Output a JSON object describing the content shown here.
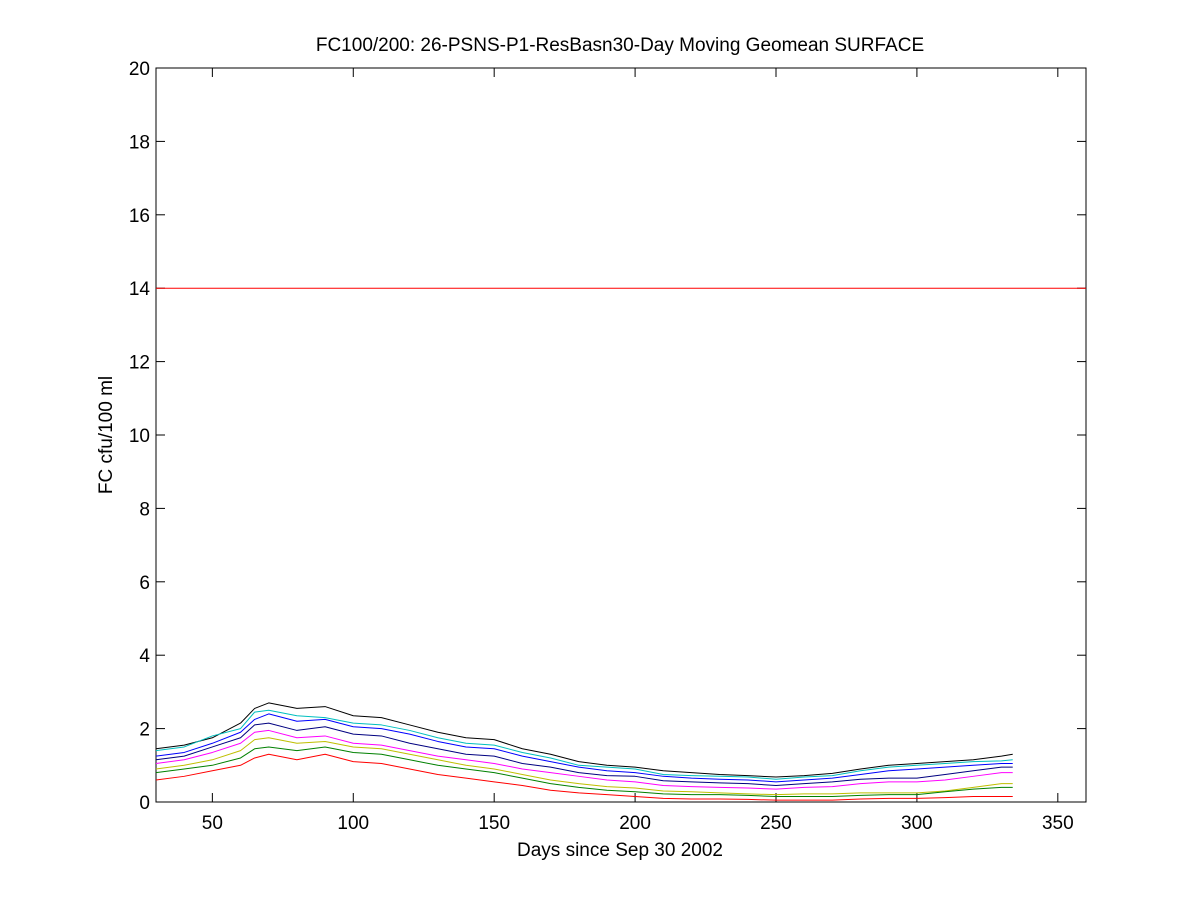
{
  "chart_data": {
    "type": "line",
    "title": "FC100/200: 26-PSNS-P1-ResBasn30-Day Moving Geomean SURFACE",
    "xlabel": "Days since Sep 30 2002",
    "ylabel": "FC cfu/100 ml",
    "xlim": [
      30,
      360
    ],
    "ylim": [
      0,
      20
    ],
    "xticks": [
      50,
      100,
      150,
      200,
      250,
      300,
      350
    ],
    "yticks": [
      0,
      2,
      4,
      6,
      8,
      10,
      12,
      14,
      16,
      18,
      20
    ],
    "grid": false,
    "legend": "none",
    "x": [
      30,
      40,
      50,
      60,
      65,
      70,
      80,
      90,
      100,
      110,
      120,
      130,
      140,
      150,
      160,
      170,
      180,
      190,
      200,
      210,
      220,
      230,
      240,
      250,
      260,
      270,
      280,
      290,
      300,
      310,
      320,
      330,
      334
    ],
    "reference_line": {
      "y": 14,
      "color": "#ff0000"
    },
    "series": [
      {
        "color": "#000000",
        "values": [
          1.45,
          1.55,
          1.75,
          2.15,
          2.55,
          2.7,
          2.55,
          2.6,
          2.35,
          2.3,
          2.1,
          1.9,
          1.75,
          1.7,
          1.45,
          1.3,
          1.1,
          1.0,
          0.95,
          0.85,
          0.8,
          0.75,
          0.72,
          0.68,
          0.72,
          0.78,
          0.9,
          1.0,
          1.05,
          1.1,
          1.15,
          1.25,
          1.3
        ]
      },
      {
        "color": "#00bfbf",
        "values": [
          1.4,
          1.5,
          1.8,
          2.0,
          2.45,
          2.5,
          2.35,
          2.3,
          2.15,
          2.1,
          1.95,
          1.75,
          1.6,
          1.55,
          1.35,
          1.2,
          1.0,
          0.95,
          0.9,
          0.75,
          0.72,
          0.7,
          0.68,
          0.62,
          0.68,
          0.72,
          0.85,
          0.95,
          1.0,
          1.05,
          1.1,
          1.12,
          1.15
        ]
      },
      {
        "color": "#0000ff",
        "values": [
          1.25,
          1.35,
          1.6,
          1.9,
          2.25,
          2.4,
          2.2,
          2.25,
          2.05,
          2.0,
          1.85,
          1.65,
          1.5,
          1.45,
          1.25,
          1.1,
          0.95,
          0.85,
          0.8,
          0.7,
          0.65,
          0.62,
          0.6,
          0.55,
          0.6,
          0.65,
          0.75,
          0.85,
          0.9,
          0.95,
          1.0,
          1.05,
          1.05
        ]
      },
      {
        "color": "#000080",
        "values": [
          1.15,
          1.25,
          1.5,
          1.75,
          2.1,
          2.15,
          1.95,
          2.05,
          1.85,
          1.8,
          1.6,
          1.45,
          1.3,
          1.25,
          1.05,
          0.95,
          0.8,
          0.72,
          0.7,
          0.58,
          0.55,
          0.52,
          0.5,
          0.45,
          0.5,
          0.55,
          0.62,
          0.65,
          0.65,
          0.75,
          0.85,
          0.95,
          0.95
        ]
      },
      {
        "color": "#ff00ff",
        "values": [
          1.05,
          1.15,
          1.35,
          1.6,
          1.9,
          1.95,
          1.75,
          1.8,
          1.6,
          1.55,
          1.4,
          1.25,
          1.15,
          1.05,
          0.9,
          0.8,
          0.7,
          0.6,
          0.55,
          0.45,
          0.42,
          0.4,
          0.38,
          0.35,
          0.4,
          0.42,
          0.5,
          0.55,
          0.55,
          0.6,
          0.7,
          0.8,
          0.8
        ]
      },
      {
        "color": "#bfbf00",
        "values": [
          0.9,
          1.0,
          1.15,
          1.4,
          1.7,
          1.75,
          1.6,
          1.65,
          1.5,
          1.45,
          1.3,
          1.15,
          1.0,
          0.9,
          0.75,
          0.6,
          0.5,
          0.42,
          0.38,
          0.3,
          0.28,
          0.25,
          0.22,
          0.2,
          0.22,
          0.22,
          0.25,
          0.25,
          0.25,
          0.3,
          0.4,
          0.5,
          0.5
        ]
      },
      {
        "color": "#008000",
        "values": [
          0.8,
          0.9,
          1.0,
          1.2,
          1.45,
          1.5,
          1.4,
          1.5,
          1.35,
          1.3,
          1.15,
          1.0,
          0.9,
          0.8,
          0.65,
          0.5,
          0.4,
          0.32,
          0.28,
          0.22,
          0.2,
          0.2,
          0.18,
          0.15,
          0.15,
          0.15,
          0.18,
          0.2,
          0.2,
          0.28,
          0.35,
          0.4,
          0.4
        ]
      },
      {
        "color": "#ff0000",
        "values": [
          0.6,
          0.7,
          0.85,
          1.0,
          1.2,
          1.3,
          1.15,
          1.3,
          1.1,
          1.05,
          0.9,
          0.75,
          0.65,
          0.55,
          0.45,
          0.32,
          0.25,
          0.2,
          0.15,
          0.1,
          0.08,
          0.08,
          0.07,
          0.05,
          0.05,
          0.05,
          0.08,
          0.1,
          0.1,
          0.12,
          0.15,
          0.15,
          0.15
        ]
      }
    ]
  }
}
